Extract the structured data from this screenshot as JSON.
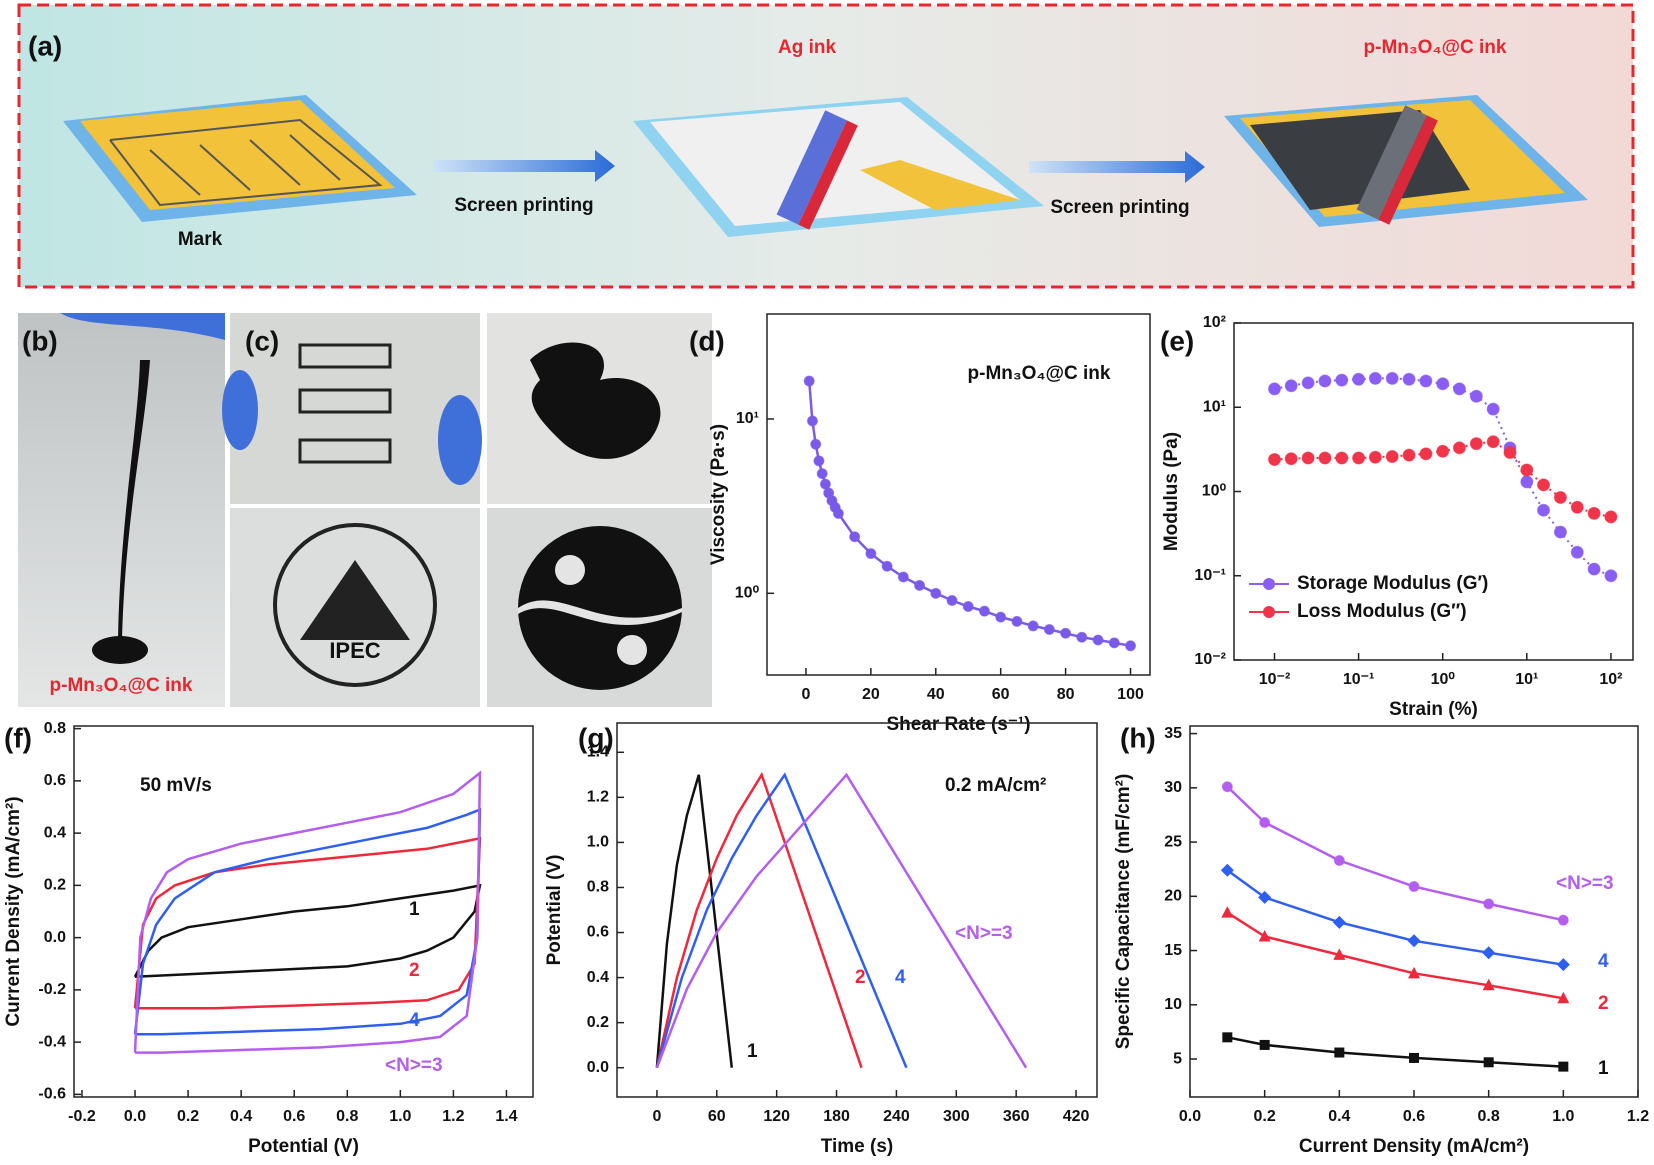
{
  "schematic": {
    "label": "(a)",
    "step1": "Mark",
    "arrow1": "Screen printing",
    "step2": "Ag ink",
    "arrow2": "Screen printing",
    "step3": "p-Mn₃O₄@C ink"
  },
  "photo_b": {
    "label": "(b)",
    "caption": "p-Mn₃O₄@C ink"
  },
  "photo_c": {
    "label": "(c)",
    "logo_text": "IPEC"
  },
  "chart_data": [
    {
      "type": "line",
      "label": "(d)",
      "annotation": "p-Mn₃O₄@C ink",
      "xlabel": "Shear Rate (s⁻¹)",
      "ylabel": "Viscosity (Pa·s)",
      "xlim": [
        -12,
        106
      ],
      "ylim": [
        0.34,
        40
      ],
      "ylog": true,
      "xticks": [
        0,
        20,
        40,
        60,
        80,
        100
      ],
      "yticks": [
        {
          "value": 1,
          "label": "10⁰"
        },
        {
          "value": 10,
          "label": "10¹"
        }
      ],
      "series": [
        {
          "color": "#7a5ae8",
          "marker": "circle",
          "x": [
            1,
            2,
            3,
            4,
            5,
            6,
            7,
            8,
            9,
            10,
            15,
            20,
            25,
            30,
            35,
            40,
            45,
            50,
            55,
            60,
            65,
            70,
            75,
            80,
            85,
            90,
            95,
            100
          ],
          "values": [
            16.5,
            9.74,
            7.16,
            5.75,
            4.86,
            4.23,
            3.76,
            3.4,
            3.11,
            2.87,
            2.11,
            1.69,
            1.43,
            1.24,
            1.11,
            1.0,
            0.91,
            0.84,
            0.79,
            0.73,
            0.69,
            0.65,
            0.62,
            0.59,
            0.56,
            0.54,
            0.52,
            0.5
          ]
        }
      ]
    },
    {
      "type": "line",
      "label": "(e)",
      "xlabel": "Strain (%)",
      "ylabel": "Modulus (Pa)",
      "xlim": [
        0.0033,
        183
      ],
      "ylim": [
        0.01,
        100
      ],
      "xlog": true,
      "ylog": true,
      "linestyle": "dotted",
      "legend": "lower left",
      "xticks": [
        {
          "value": 0.01,
          "label": "10⁻²"
        },
        {
          "value": 0.1,
          "label": "10⁻¹"
        },
        {
          "value": 1,
          "label": "10⁰"
        },
        {
          "value": 10,
          "label": "10¹"
        },
        {
          "value": 100,
          "label": "10²"
        }
      ],
      "yticks": [
        {
          "value": 0.01,
          "label": "10⁻²"
        },
        {
          "value": 0.1,
          "label": "10⁻¹"
        },
        {
          "value": 1,
          "label": "10⁰"
        },
        {
          "value": 10,
          "label": "10¹"
        },
        {
          "value": 100,
          "label": "10²"
        }
      ],
      "series": [
        {
          "name": "Storage Modulus (G′)",
          "color": "#8a5ef2",
          "marker": "circle",
          "x": [
            0.01,
            0.0158,
            0.0251,
            0.0398,
            0.0631,
            0.1,
            0.158,
            0.251,
            0.398,
            0.631,
            1,
            1.58,
            2.51,
            3.98,
            6.31,
            10,
            15.8,
            25.1,
            39.8,
            63.1,
            100
          ],
          "values": [
            16.5,
            18,
            19.5,
            20.5,
            21,
            21.5,
            22,
            22,
            21.5,
            20.5,
            19,
            16.5,
            13.5,
            9.5,
            3.3,
            1.3,
            0.6,
            0.33,
            0.19,
            0.12,
            0.1
          ]
        },
        {
          "name": "Loss Modulus (G″)",
          "color": "#f0344a",
          "marker": "circle",
          "x": [
            0.01,
            0.0158,
            0.0251,
            0.0398,
            0.0631,
            0.1,
            0.158,
            0.251,
            0.398,
            0.631,
            1,
            1.58,
            2.51,
            3.98,
            6.31,
            10,
            15.8,
            25.1,
            39.8,
            63.1,
            100
          ],
          "values": [
            2.4,
            2.45,
            2.5,
            2.5,
            2.5,
            2.5,
            2.55,
            2.6,
            2.7,
            2.8,
            3.0,
            3.3,
            3.7,
            3.9,
            2.9,
            1.8,
            1.2,
            0.85,
            0.65,
            0.55,
            0.5
          ]
        }
      ]
    },
    {
      "type": "line",
      "label": "(f)",
      "annotation": "50 mV/s",
      "xlabel": "Potential (V)",
      "ylabel": "Current Density (mA/cm²)",
      "xlim": [
        -0.23,
        1.5
      ],
      "ylim": [
        -0.61,
        0.81
      ],
      "xticks": [
        -0.2,
        {
          "value": 0,
          "label": "0.0"
        },
        0.2,
        0.4,
        0.6,
        0.8,
        {
          "value": 1,
          "label": "1.0"
        },
        1.2,
        1.4
      ],
      "yticks": [
        -0.6,
        -0.4,
        -0.2,
        {
          "value": 0,
          "label": "0.0"
        },
        0.2,
        0.4,
        0.6,
        0.8
      ],
      "series": [
        {
          "name": "1",
          "color": "#111111",
          "x": [
            0,
            0.05,
            0.1,
            0.2,
            0.4,
            0.6,
            0.8,
            1.0,
            1.2,
            1.3,
            1.28,
            1.2,
            1.1,
            1.0,
            0.8,
            0.6,
            0.4,
            0.2,
            0
          ],
          "values": [
            -0.15,
            -0.05,
            0.0,
            0.04,
            0.07,
            0.1,
            0.12,
            0.15,
            0.18,
            0.2,
            0.1,
            0.0,
            -0.05,
            -0.08,
            -0.11,
            -0.12,
            -0.13,
            -0.14,
            -0.15
          ]
        },
        {
          "name": "2",
          "color": "#f0283c",
          "x": [
            0,
            0.03,
            0.08,
            0.15,
            0.3,
            0.5,
            0.7,
            0.9,
            1.1,
            1.25,
            1.3,
            1.28,
            1.22,
            1.1,
            0.9,
            0.6,
            0.3,
            0
          ],
          "values": [
            -0.27,
            0.05,
            0.15,
            0.2,
            0.25,
            0.28,
            0.3,
            0.32,
            0.34,
            0.37,
            0.38,
            -0.1,
            -0.2,
            -0.24,
            -0.25,
            -0.26,
            -0.27,
            -0.27
          ]
        },
        {
          "name": "4",
          "color": "#2f5ff0",
          "x": [
            0,
            0.03,
            0.08,
            0.15,
            0.3,
            0.5,
            0.7,
            0.9,
            1.1,
            1.25,
            1.3,
            1.29,
            1.25,
            1.15,
            1.0,
            0.7,
            0.4,
            0.1,
            0
          ],
          "values": [
            -0.37,
            -0.1,
            0.05,
            0.15,
            0.25,
            0.3,
            0.34,
            0.38,
            0.42,
            0.47,
            0.49,
            0,
            -0.22,
            -0.3,
            -0.33,
            -0.35,
            -0.36,
            -0.37,
            -0.37
          ]
        },
        {
          "name": "<N>=3",
          "color": "#b45ef0",
          "x": [
            0,
            0.02,
            0.06,
            0.12,
            0.2,
            0.4,
            0.6,
            0.8,
            1.0,
            1.2,
            1.3,
            1.29,
            1.25,
            1.15,
            1.0,
            0.7,
            0.4,
            0.1,
            0
          ],
          "values": [
            -0.44,
            0,
            0.15,
            0.25,
            0.3,
            0.36,
            0.4,
            0.44,
            0.48,
            0.55,
            0.63,
            0,
            -0.3,
            -0.38,
            -0.4,
            -0.42,
            -0.43,
            -0.44,
            -0.44
          ]
        }
      ]
    },
    {
      "type": "line",
      "label": "(g)",
      "annotation": "0.2 mA/cm²",
      "xlabel": "Time (s)",
      "ylabel": "Potential (V)",
      "xlim": [
        -40,
        441
      ],
      "ylim": [
        -0.13,
        1.53
      ],
      "xticks": [
        0,
        60,
        120,
        180,
        240,
        300,
        360,
        420
      ],
      "yticks": [
        {
          "value": 0,
          "label": "0.0"
        },
        0.2,
        0.4,
        0.6,
        0.8,
        {
          "value": 1,
          "label": "1.0"
        },
        1.2,
        1.4
      ],
      "series": [
        {
          "name": "1",
          "color": "#111111",
          "x": [
            0,
            10,
            20,
            30,
            42,
            75
          ],
          "values": [
            0,
            0.55,
            0.9,
            1.12,
            1.3,
            0
          ]
        },
        {
          "name": "2",
          "color": "#f0283c",
          "x": [
            0,
            20,
            40,
            60,
            80,
            105,
            205
          ],
          "values": [
            0,
            0.4,
            0.7,
            0.93,
            1.12,
            1.3,
            0
          ]
        },
        {
          "name": "4",
          "color": "#2f5ff0",
          "x": [
            0,
            25,
            50,
            75,
            100,
            128,
            250
          ],
          "values": [
            0,
            0.4,
            0.7,
            0.93,
            1.12,
            1.3,
            0
          ]
        },
        {
          "name": "<N>=3",
          "color": "#b45ef0",
          "x": [
            0,
            30,
            60,
            100,
            140,
            190,
            370
          ],
          "values": [
            0,
            0.35,
            0.6,
            0.85,
            1.05,
            1.3,
            0
          ]
        }
      ]
    },
    {
      "type": "line",
      "label": "(h)",
      "xlabel": "Current Density (mA/cm²)",
      "ylabel": "Specific Capacitance (mF/cm²)",
      "xlim": [
        0,
        1.2
      ],
      "ylim": [
        1.5,
        35.7
      ],
      "xticks": [
        {
          "value": 0,
          "label": "0.0"
        },
        0.2,
        0.4,
        0.6,
        0.8,
        {
          "value": 1,
          "label": "1.0"
        },
        1.2
      ],
      "yticks": [
        5,
        10,
        15,
        20,
        25,
        30,
        35
      ],
      "series": [
        {
          "name": "1",
          "color": "#111111",
          "marker": "square",
          "x": [
            0.1,
            0.2,
            0.4,
            0.6,
            0.8,
            1.0
          ],
          "values": [
            7.0,
            6.3,
            5.6,
            5.1,
            4.7,
            4.3
          ]
        },
        {
          "name": "2",
          "color": "#f0283c",
          "marker": "triangle",
          "x": [
            0.1,
            0.2,
            0.4,
            0.6,
            0.8,
            1.0
          ],
          "values": [
            18.5,
            16.3,
            14.6,
            12.9,
            11.8,
            10.6
          ]
        },
        {
          "name": "4",
          "color": "#2f5ff0",
          "marker": "diamond",
          "x": [
            0.1,
            0.2,
            0.4,
            0.6,
            0.8,
            1.0
          ],
          "values": [
            22.4,
            19.9,
            17.6,
            15.9,
            14.8,
            13.7
          ]
        },
        {
          "name": "<N>=3",
          "color": "#b45ef0",
          "marker": "circle",
          "x": [
            0.1,
            0.2,
            0.4,
            0.6,
            0.8,
            1.0
          ],
          "values": [
            30.1,
            26.8,
            23.3,
            20.9,
            19.3,
            17.8
          ]
        }
      ]
    }
  ]
}
